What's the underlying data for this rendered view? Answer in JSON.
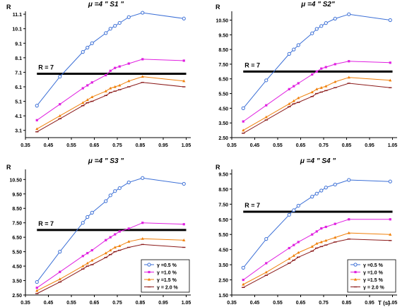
{
  "chart_data": [
    {
      "type": "line",
      "title": "μ =4   \" S1 \"",
      "ylabel": "R",
      "xlabel": "",
      "y_ticks": [
        3.1,
        4.1,
        5.1,
        6.1,
        7.1,
        8.1,
        9.1,
        10.1,
        11.1
      ],
      "y_tick_labels": [
        "3.1",
        "4.1",
        "5.1",
        "6.1",
        "7.1",
        "8.1",
        "9.1",
        "10.1",
        "11.1"
      ],
      "x_ticks": [
        0.35,
        0.45,
        0.55,
        0.65,
        0.75,
        0.85,
        0.95,
        1.05
      ],
      "x_tick_labels": [
        "0.35",
        "0.45",
        "0.55",
        "0.65",
        "0.75",
        "0.85",
        "0.95",
        "1.05"
      ],
      "ylim": [
        2.6,
        11.3
      ],
      "xlim": [
        0.35,
        1.07
      ],
      "grid": false,
      "reference_line": {
        "y": 7.0,
        "label": "R = 7"
      },
      "series": [
        {
          "x": [
            0.4,
            0.5,
            0.6,
            0.62,
            0.64,
            0.7,
            0.72,
            0.74,
            0.76,
            0.8,
            0.86,
            1.04
          ],
          "values": [
            4.8,
            6.8,
            8.5,
            8.8,
            9.1,
            9.8,
            10.1,
            10.3,
            10.5,
            10.9,
            11.2,
            10.8
          ]
        },
        {
          "x": [
            0.4,
            0.5,
            0.6,
            0.62,
            0.64,
            0.7,
            0.72,
            0.74,
            0.76,
            0.8,
            0.86,
            1.04
          ],
          "values": [
            3.8,
            4.9,
            6.0,
            6.2,
            6.4,
            6.9,
            7.2,
            7.4,
            7.5,
            7.7,
            8.0,
            7.9
          ]
        },
        {
          "x": [
            0.4,
            0.5,
            0.6,
            0.62,
            0.64,
            0.7,
            0.72,
            0.74,
            0.76,
            0.8,
            0.86,
            1.04
          ],
          "values": [
            3.2,
            4.1,
            5.0,
            5.2,
            5.4,
            5.8,
            6.0,
            6.1,
            6.2,
            6.5,
            6.8,
            6.5
          ]
        },
        {
          "x": [
            0.4,
            0.5,
            0.6,
            0.62,
            0.64,
            0.7,
            0.72,
            0.74,
            0.76,
            0.8,
            0.86,
            1.04
          ],
          "values": [
            3.0,
            3.9,
            4.8,
            5.0,
            5.1,
            5.5,
            5.7,
            5.8,
            5.9,
            6.1,
            6.4,
            6.1
          ]
        }
      ]
    },
    {
      "type": "line",
      "title": "μ =4   \" S2\"",
      "ylabel": "R",
      "xlabel": "",
      "y_ticks": [
        2.5,
        3.5,
        4.5,
        5.5,
        6.5,
        7.5,
        8.5,
        9.5,
        10.5
      ],
      "y_tick_labels": [
        "2.50",
        "3.50",
        "4.50",
        "5.50",
        "6.50",
        "7.50",
        "8.50",
        "9.50",
        "10.50"
      ],
      "x_ticks": [
        0.35,
        0.45,
        0.55,
        0.65,
        0.75,
        0.85,
        0.95,
        1.05
      ],
      "x_tick_labels": [
        "0.35",
        "0.45",
        "0.55",
        "0.65",
        "0.75",
        "0.85",
        "0.95",
        "1.05"
      ],
      "ylim": [
        2.5,
        11.1
      ],
      "xlim": [
        0.35,
        1.07
      ],
      "grid": false,
      "reference_line": {
        "y": 7.0,
        "label": "R = 7"
      },
      "series": [
        {
          "x": [
            0.4,
            0.5,
            0.6,
            0.62,
            0.64,
            0.7,
            0.72,
            0.74,
            0.76,
            0.8,
            0.86,
            1.04
          ],
          "values": [
            4.5,
            6.4,
            8.2,
            8.5,
            8.8,
            9.6,
            9.9,
            10.1,
            10.3,
            10.6,
            10.9,
            10.5
          ]
        },
        {
          "x": [
            0.4,
            0.5,
            0.6,
            0.62,
            0.64,
            0.7,
            0.72,
            0.74,
            0.76,
            0.8,
            0.86,
            1.04
          ],
          "values": [
            3.6,
            4.7,
            5.8,
            6.0,
            6.2,
            6.8,
            7.0,
            7.2,
            7.3,
            7.5,
            7.7,
            7.6
          ]
        },
        {
          "x": [
            0.4,
            0.5,
            0.6,
            0.62,
            0.64,
            0.7,
            0.72,
            0.74,
            0.76,
            0.8,
            0.86,
            1.04
          ],
          "values": [
            3.0,
            3.9,
            4.8,
            5.0,
            5.2,
            5.6,
            5.8,
            5.9,
            6.0,
            6.3,
            6.6,
            6.4
          ]
        },
        {
          "x": [
            0.4,
            0.5,
            0.6,
            0.62,
            0.64,
            0.7,
            0.72,
            0.74,
            0.76,
            0.8,
            0.86,
            1.04
          ],
          "values": [
            2.8,
            3.7,
            4.6,
            4.8,
            4.9,
            5.3,
            5.5,
            5.6,
            5.7,
            5.9,
            6.2,
            5.9
          ]
        }
      ]
    },
    {
      "type": "line",
      "title": "μ =4   \" S3 \"",
      "ylabel": "R",
      "xlabel": "",
      "y_ticks": [
        2.5,
        3.5,
        4.5,
        5.5,
        6.5,
        7.5,
        8.5,
        9.5,
        10.5
      ],
      "y_tick_labels": [
        "2.50",
        "3.50",
        "4.50",
        "5.50",
        "6.50",
        "7.50",
        "8.50",
        "9.50",
        "10.50"
      ],
      "x_ticks": [
        0.35,
        0.45,
        0.55,
        0.65,
        0.75,
        0.85,
        0.95,
        1.05
      ],
      "x_tick_labels": [
        "0.35",
        "0.45",
        "0.55",
        "0.65",
        "0.75",
        "0.85",
        "0.95",
        "1.05"
      ],
      "ylim": [
        2.5,
        11.2
      ],
      "xlim": [
        0.35,
        1.07
      ],
      "grid": false,
      "reference_line": {
        "y": 7.0,
        "label": "R = 7"
      },
      "series": [
        {
          "x": [
            0.4,
            0.5,
            0.6,
            0.62,
            0.64,
            0.7,
            0.72,
            0.74,
            0.76,
            0.8,
            0.86,
            1.04
          ],
          "values": [
            3.4,
            5.5,
            7.5,
            7.9,
            8.2,
            9.0,
            9.4,
            9.7,
            9.9,
            10.3,
            10.6,
            10.2
          ]
        },
        {
          "x": [
            0.4,
            0.5,
            0.6,
            0.62,
            0.64,
            0.7,
            0.72,
            0.74,
            0.76,
            0.8,
            0.86,
            1.04
          ],
          "values": [
            3.0,
            4.1,
            5.2,
            5.4,
            5.6,
            6.3,
            6.5,
            6.7,
            6.9,
            7.1,
            7.5,
            7.4
          ]
        },
        {
          "x": [
            0.4,
            0.5,
            0.6,
            0.62,
            0.64,
            0.7,
            0.72,
            0.74,
            0.76,
            0.8,
            0.86,
            1.04
          ],
          "values": [
            2.8,
            3.6,
            4.5,
            4.7,
            4.9,
            5.4,
            5.6,
            5.8,
            5.9,
            6.2,
            6.4,
            6.3
          ]
        },
        {
          "x": [
            0.4,
            0.5,
            0.6,
            0.62,
            0.64,
            0.7,
            0.72,
            0.74,
            0.76,
            0.8,
            0.86,
            1.04
          ],
          "values": [
            2.6,
            3.4,
            4.3,
            4.5,
            4.6,
            5.1,
            5.3,
            5.5,
            5.6,
            5.8,
            6.0,
            5.8
          ]
        }
      ],
      "legend": {
        "placement": "bottom-right",
        "entries": [
          "γ =0.5 %",
          "γ =1.0 %",
          "γ =1.5 %",
          "γ  = 2.0 %"
        ]
      }
    },
    {
      "type": "line",
      "title": "μ =4   \" S4 \"",
      "ylabel": "R",
      "xlabel": "T (s)",
      "y_ticks": [
        1.5,
        2.5,
        3.5,
        4.5,
        5.5,
        6.5,
        7.5,
        8.5,
        9.5
      ],
      "y_tick_labels": [
        "1.50",
        "2.50",
        "3.50",
        "4.50",
        "5.50",
        "6.50",
        "7.50",
        "8.50",
        "9.50"
      ],
      "x_ticks": [
        0.35,
        0.45,
        0.55,
        0.65,
        0.75,
        0.85,
        0.95,
        1.05
      ],
      "x_tick_labels": [
        "0.35",
        "0.45",
        "0.55",
        "0.65",
        "0.75",
        "0.85",
        "0.95",
        "1.05"
      ],
      "ylim": [
        1.5,
        9.8
      ],
      "xlim": [
        0.35,
        1.07
      ],
      "grid": false,
      "reference_line": {
        "y": 7.0,
        "label": "R = 7"
      },
      "series": [
        {
          "x": [
            0.4,
            0.5,
            0.6,
            0.62,
            0.64,
            0.7,
            0.72,
            0.74,
            0.76,
            0.8,
            0.86,
            1.04
          ],
          "values": [
            3.3,
            5.2,
            6.8,
            7.1,
            7.4,
            8.0,
            8.2,
            8.4,
            8.6,
            8.8,
            9.1,
            9.0
          ]
        },
        {
          "x": [
            0.4,
            0.5,
            0.6,
            0.62,
            0.64,
            0.7,
            0.72,
            0.74,
            0.76,
            0.8,
            0.86,
            1.04
          ],
          "values": [
            2.5,
            3.6,
            4.6,
            4.8,
            5.0,
            5.5,
            5.7,
            5.9,
            6.0,
            6.2,
            6.5,
            6.5
          ]
        },
        {
          "x": [
            0.4,
            0.5,
            0.6,
            0.62,
            0.64,
            0.7,
            0.72,
            0.74,
            0.76,
            0.8,
            0.86,
            1.04
          ],
          "values": [
            2.2,
            3.0,
            3.9,
            4.1,
            4.3,
            4.7,
            4.9,
            5.0,
            5.1,
            5.3,
            5.6,
            5.5
          ]
        },
        {
          "x": [
            0.4,
            0.5,
            0.6,
            0.62,
            0.64,
            0.7,
            0.72,
            0.74,
            0.76,
            0.8,
            0.86,
            1.04
          ],
          "values": [
            2.0,
            2.8,
            3.6,
            3.8,
            4.0,
            4.4,
            4.6,
            4.7,
            4.8,
            5.0,
            5.2,
            5.1
          ]
        }
      ],
      "legend": {
        "placement": "bottom-right",
        "entries": [
          "γ =0.5 %",
          "γ =1.0 %",
          "γ =1.5 %",
          "γ  = 2.0 %"
        ]
      }
    }
  ],
  "series_styles": [
    {
      "color": "#3b6fd6",
      "marker": "circle-open"
    },
    {
      "color": "#e020e0",
      "marker": "square-filled"
    },
    {
      "color": "#f0800a",
      "marker": "triangle-filled"
    },
    {
      "color": "#8b1a1a",
      "marker": "dash"
    }
  ],
  "reference_line_color": "#000000",
  "axis_color": "#000000"
}
